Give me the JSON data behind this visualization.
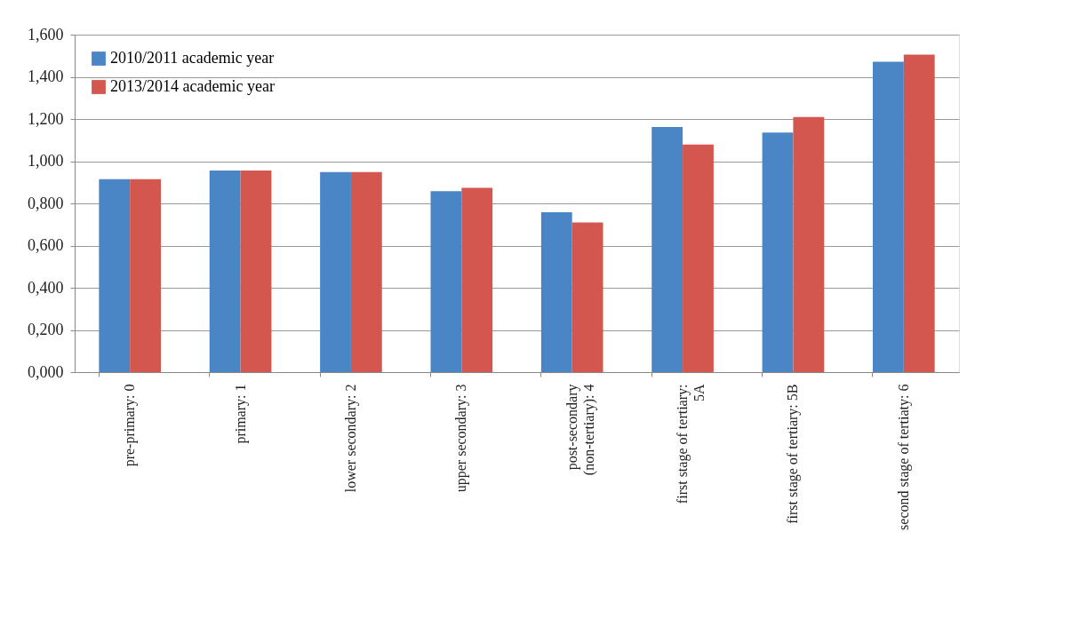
{
  "chart_data": {
    "type": "bar",
    "categories": [
      "pre-primary: 0",
      "primary: 1",
      "lower secondary: 2",
      "upper secondary: 3",
      "post-secondary\n(non-tertiary): 4",
      "first stage of tertiary:\n5A",
      "first stage of tertiary: 5B",
      "second stage of tertiaty: 6"
    ],
    "series": [
      {
        "name": "2010/2011 academic year",
        "color": "#4a86c6",
        "values": [
          0.915,
          0.956,
          0.948,
          0.858,
          0.758,
          1.162,
          1.136,
          1.472
        ]
      },
      {
        "name": "2013/2014 academic year",
        "color": "#d4574f",
        "values": [
          0.915,
          0.956,
          0.948,
          0.874,
          0.71,
          1.079,
          1.21,
          1.505
        ]
      }
    ],
    "ylim": [
      0,
      1.6
    ],
    "yticks": [
      {
        "value": 0,
        "label": "0,000"
      },
      {
        "value": 0.2,
        "label": "0,200"
      },
      {
        "value": 0.4,
        "label": "0,400"
      },
      {
        "value": 0.6,
        "label": "0,600"
      },
      {
        "value": 0.8,
        "label": "0,800"
      },
      {
        "value": 1.0,
        "label": "1,000"
      },
      {
        "value": 1.2,
        "label": "1,200"
      },
      {
        "value": 1.4,
        "label": "1,400"
      },
      {
        "value": 1.6,
        "label": "1,600"
      }
    ],
    "grid": "y",
    "legend": "top left"
  }
}
